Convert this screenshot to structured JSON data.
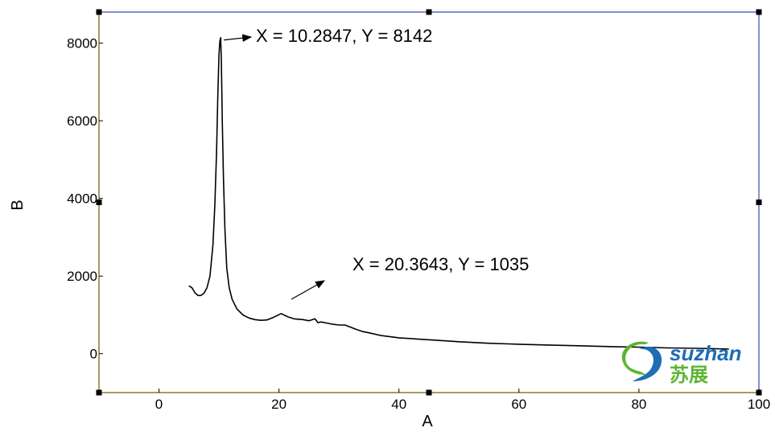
{
  "chart_data": {
    "type": "line",
    "xlabel": "A",
    "ylabel": "B",
    "xlim": [
      -10,
      100
    ],
    "ylim": [
      -1000,
      8800
    ],
    "xticks": [
      0,
      20,
      40,
      60,
      80,
      100
    ],
    "yticks": [
      0,
      2000,
      4000,
      6000,
      8000
    ],
    "grid": false,
    "series": [
      {
        "x": [
          5,
          5.5,
          6,
          6.5,
          7,
          7.5,
          8,
          8.5,
          9,
          9.3,
          9.6,
          9.8,
          10,
          10.15,
          10.2847,
          10.4,
          10.55,
          10.75,
          11,
          11.3,
          11.7,
          12.2,
          13,
          14,
          15,
          16,
          17,
          18,
          19,
          20.3643,
          21.5,
          22.5,
          24,
          25,
          26,
          26.5,
          27,
          28,
          29,
          30,
          31,
          32,
          33,
          34,
          35,
          37,
          40,
          43,
          46,
          50,
          55,
          60,
          65,
          70,
          75,
          80,
          85,
          90,
          95
        ],
        "y": [
          1750,
          1700,
          1570,
          1500,
          1500,
          1560,
          1700,
          2000,
          2800,
          3800,
          5200,
          6600,
          7700,
          8050,
          8142,
          7500,
          6000,
          4500,
          3200,
          2200,
          1700,
          1400,
          1150,
          1000,
          920,
          880,
          860,
          870,
          930,
          1035,
          950,
          900,
          880,
          850,
          900,
          800,
          820,
          790,
          760,
          740,
          740,
          680,
          620,
          570,
          540,
          470,
          410,
          380,
          350,
          310,
          270,
          245,
          225,
          205,
          185,
          170,
          150,
          140,
          120
        ]
      }
    ],
    "annotations": [
      {
        "text": "X = 10.2847, Y = 8142",
        "x": 10.2847,
        "y": 8142
      },
      {
        "text": "X = 20.3643, Y = 1035",
        "x": 20.3643,
        "y": 1035
      }
    ]
  },
  "logo": {
    "text": "suzhan",
    "chinese": "苏展"
  },
  "colors": {
    "frame_left_bottom": "#8a7a2a",
    "frame_top_right": "#3a4aa8",
    "line": "#000000",
    "logo_green": "#5cb531",
    "logo_blue": "#1e6db5"
  }
}
